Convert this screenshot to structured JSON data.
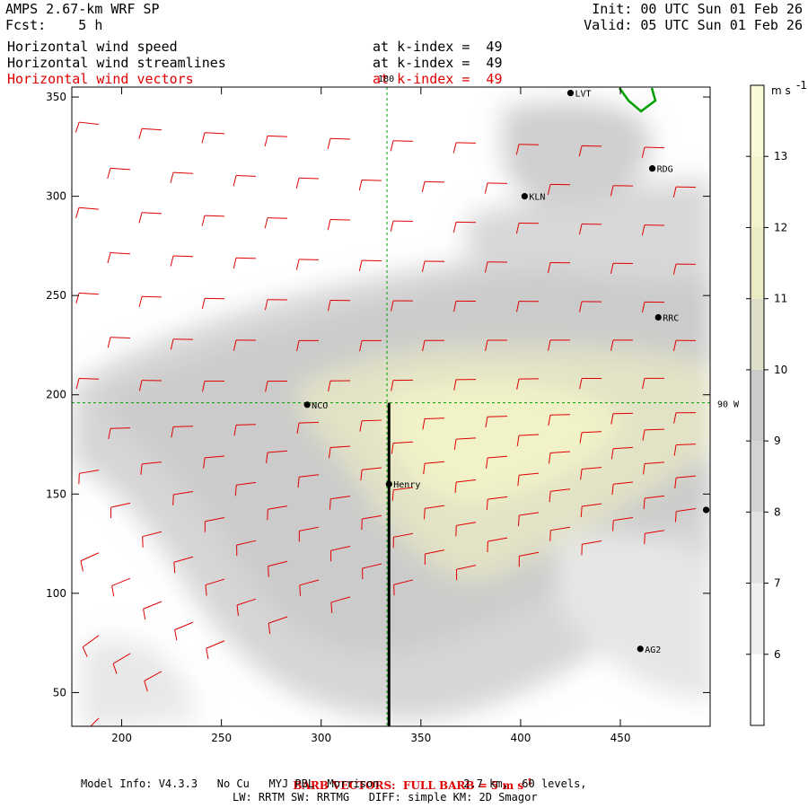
{
  "header": {
    "model_title": "AMPS 2.67-km WRF SP",
    "forecast": "Fcst:    5 h",
    "init": "Init: 00 UTC Sun 01 Feb 26",
    "valid": "Valid: 05 UTC Sun 01 Feb 26",
    "fields": [
      {
        "name": "Horizontal wind speed",
        "level": "at k-index =  49",
        "color": "#000000"
      },
      {
        "name": "Horizontal wind streamlines",
        "level": "at k-index =  49",
        "color": "#000000"
      },
      {
        "name": "Horizontal wind vectors",
        "level": "at k-index =  49",
        "color": "#e00000"
      }
    ]
  },
  "footer": {
    "barb_note": "BARB VECTORS:  FULL BARB = 5 m s",
    "barb_sup": "-1",
    "model_info_1": "Model Info: V4.3.3   No Cu   MYJ PBL  Morrison             2.7 km,  60 levels,",
    "model_info_2": "LW: RRTM SW: RRTMG   DIFF: simple KM: 2D Smagor"
  },
  "chart_data": {
    "type": "heatmap",
    "description_of_field": "Horizontal wind speed (shaded), streamlines and barbs",
    "x_ticks": [
      200,
      250,
      300,
      350,
      400,
      450
    ],
    "y_ticks": [
      50,
      100,
      150,
      200,
      250,
      300,
      350
    ],
    "xlim": [
      175,
      495
    ],
    "ylim": [
      33,
      355
    ],
    "colorbar": {
      "unit": "m s",
      "unit_sup": "-1",
      "ticks": [
        6,
        7,
        8,
        9,
        10,
        11,
        12,
        13
      ],
      "range": [
        5,
        14
      ],
      "colors": [
        "#ffffff",
        "#f0f0f0",
        "#e2e2e2",
        "#d4d4d4",
        "#cbcbcb",
        "#dedec8",
        "#ececc4",
        "#f4f4cc",
        "#fafad8"
      ]
    },
    "cross_section_line": {
      "x": 334,
      "y_from": 33,
      "y_to": 196
    },
    "grid_lines": [
      {
        "label": "180",
        "orient": "vertical",
        "x": 333
      },
      {
        "label": "90 W",
        "orient": "horizontal",
        "y": 196
      }
    ],
    "stations": [
      {
        "name": "LVT",
        "x": 425,
        "y": 352
      },
      {
        "name": "RDG",
        "x": 466,
        "y": 314
      },
      {
        "name": "KLN",
        "x": 402,
        "y": 300
      },
      {
        "name": "RRC",
        "x": 469,
        "y": 239
      },
      {
        "name": "NCO",
        "x": 293,
        "y": 195
      },
      {
        "name": "Henry",
        "x": 334,
        "y": 155
      },
      {
        "name": "",
        "x": 493,
        "y": 142
      },
      {
        "name": "AG2",
        "x": 460,
        "y": 72
      }
    ]
  }
}
